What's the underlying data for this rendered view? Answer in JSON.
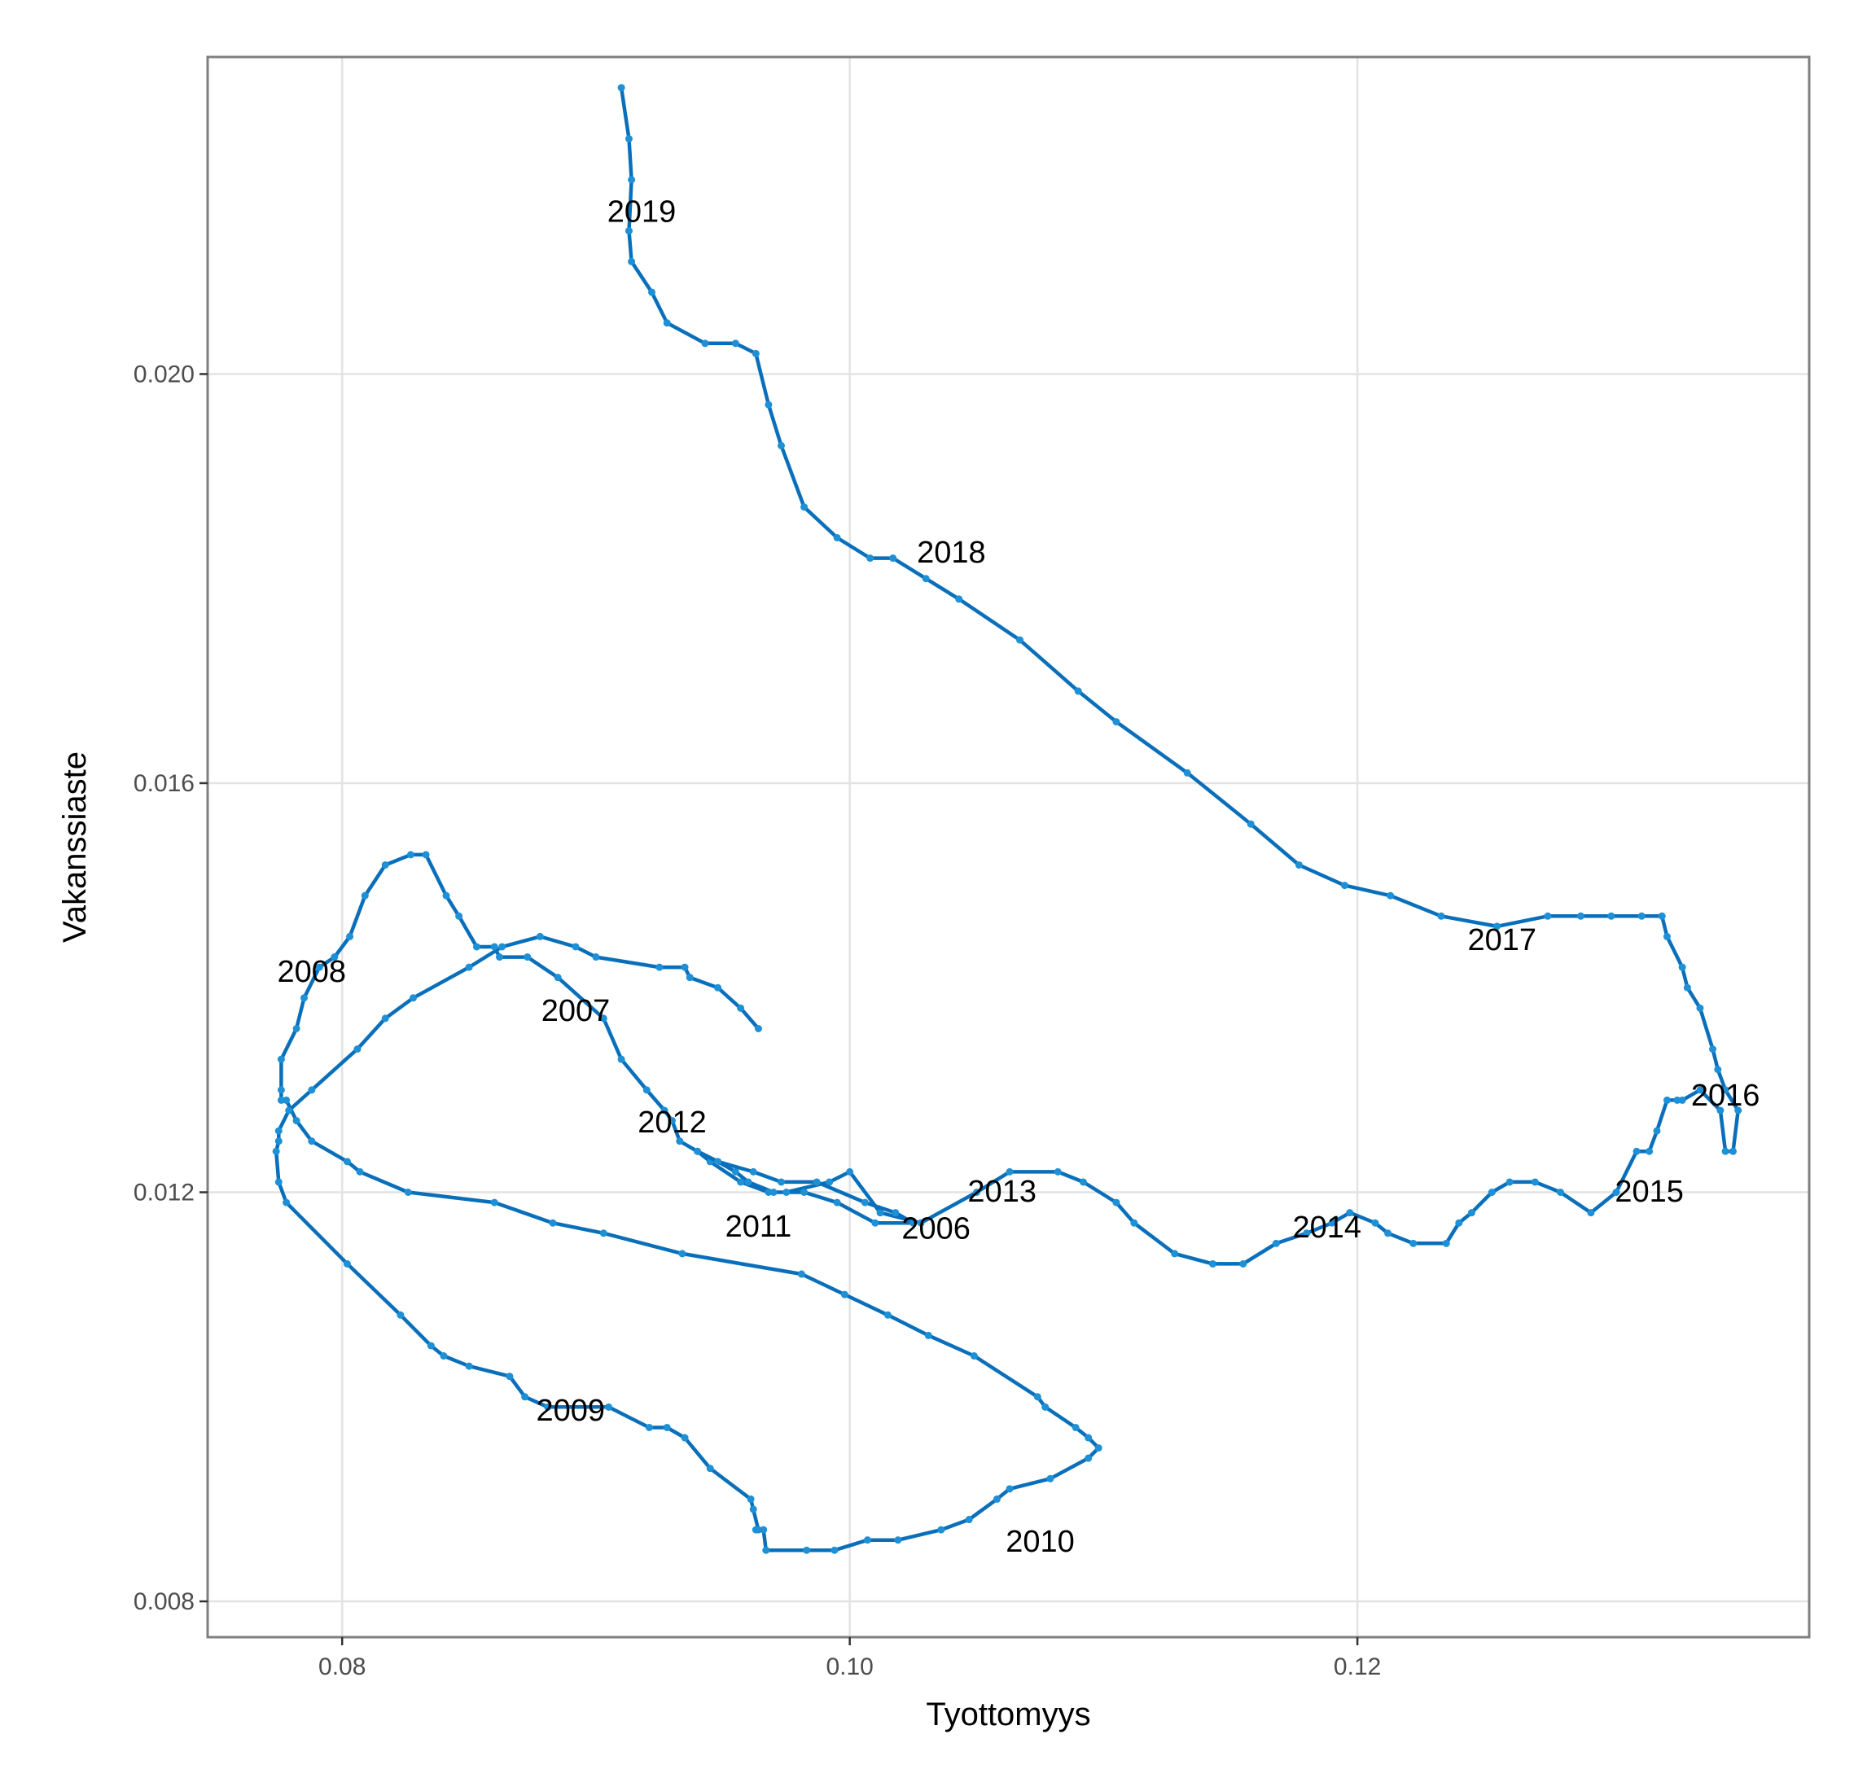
{
  "colors": {
    "line": "#0a6fba",
    "point": "#1e90d6",
    "grid": "#e3e3e3",
    "border": "#7f7f7f"
  },
  "chart_data": {
    "type": "line",
    "xlabel": "Tyottomyys",
    "ylabel": "Vakanssiaste",
    "xlim": [
      0.0747,
      0.1378
    ],
    "ylim": [
      0.00765,
      0.0231
    ],
    "x_ticks": [
      0.08,
      0.1,
      0.12
    ],
    "x_tick_labels": [
      "0.08",
      "0.10",
      "0.12"
    ],
    "y_ticks": [
      0.008,
      0.012,
      0.016,
      0.02
    ],
    "y_tick_labels": [
      "0.008",
      "0.012",
      "0.016",
      "0.020"
    ],
    "grid": true,
    "legend": "none",
    "series": [
      {
        "x": [
          0.1025,
          0.101,
          0.0995,
          0.0982,
          0.0968,
          0.0957,
          0.0945,
          0.094,
          0.0948,
          0.0955,
          0.096,
          0.097,
          0.0975,
          0.0992,
          0.1,
          0.1012,
          0.1028,
          0.105,
          0.1063,
          0.1082,
          0.1092,
          0.1105,
          0.1112,
          0.1128,
          0.1143,
          0.1155,
          0.1168,
          0.118,
          0.119,
          0.1197,
          0.1207,
          0.1212,
          0.1222,
          0.1235,
          0.124,
          0.1245,
          0.1253,
          0.126,
          0.127,
          0.128,
          0.1292,
          0.1302,
          0.131,
          0.1315,
          0.1318,
          0.1322,
          0.1326,
          0.1328,
          0.1335,
          0.1343,
          0.1345,
          0.1348,
          0.135,
          0.1345,
          0.1342,
          0.134,
          0.1335,
          0.133,
          0.1328,
          0.1322,
          0.132,
          0.1312,
          0.13,
          0.1288,
          0.1275,
          0.1255,
          0.1233,
          0.1213,
          0.1195,
          0.1177,
          0.1158,
          0.1133,
          0.1105,
          0.109,
          0.1067,
          0.1043,
          0.103,
          0.1017,
          0.1008,
          0.0995,
          0.0982,
          0.0973,
          0.0968,
          0.0963,
          0.0955,
          0.0943,
          0.0928,
          0.0922,
          0.0914,
          0.0913,
          0.0914,
          0.0913,
          0.091
        ],
        "y": [
          0.0117,
          0.0117,
          0.0119,
          0.012,
          0.012,
          0.0121,
          0.0123,
          0.0124,
          0.0123,
          0.0122,
          0.0121,
          0.012,
          0.012,
          0.0121,
          0.0122,
          0.0118,
          0.0117,
          0.012,
          0.0122,
          0.0122,
          0.0121,
          0.0119,
          0.0117,
          0.0114,
          0.0113,
          0.0113,
          0.0115,
          0.0116,
          0.0117,
          0.0118,
          0.0117,
          0.0116,
          0.0115,
          0.0115,
          0.0117,
          0.0118,
          0.012,
          0.0121,
          0.0121,
          0.012,
          0.0118,
          0.012,
          0.0124,
          0.0124,
          0.0126,
          0.0129,
          0.0129,
          0.0129,
          0.013,
          0.0128,
          0.0124,
          0.0124,
          0.0128,
          0.013,
          0.0132,
          0.0134,
          0.0138,
          0.014,
          0.0142,
          0.0145,
          0.0147,
          0.0147,
          0.0147,
          0.0147,
          0.0147,
          0.0146,
          0.0147,
          0.0149,
          0.015,
          0.0152,
          0.0156,
          0.0161,
          0.0166,
          0.0169,
          0.0174,
          0.0178,
          0.018,
          0.0182,
          0.0182,
          0.0184,
          0.0187,
          0.0193,
          0.0197,
          0.0202,
          0.0203,
          0.0203,
          0.0205,
          0.0208,
          0.0211,
          0.0214,
          0.0219,
          0.0223,
          0.0228
        ]
      },
      {
        "x": [
          0.1025,
          0.1018,
          0.1006,
          0.0987,
          0.0973,
          0.0962,
          0.0948,
          0.094,
          0.0933,
          0.093,
          0.0927,
          0.092,
          0.091,
          0.0903,
          0.0885,
          0.0873,
          0.0862,
          0.086,
          0.0853,
          0.0846,
          0.0841,
          0.0833,
          0.0827,
          0.0817,
          0.0809,
          0.0803,
          0.0797,
          0.0791,
          0.0785,
          0.0782,
          0.0776,
          0.0776,
          0.0776,
          0.0778,
          0.0782,
          0.0788,
          0.0802,
          0.0807,
          0.0826,
          0.086,
          0.0883,
          0.0903,
          0.0934,
          0.0981,
          0.0998,
          0.1015,
          0.1031,
          0.1049,
          0.1074,
          0.1077,
          0.1089,
          0.1094,
          0.1098,
          0.1094,
          0.1079,
          0.1063,
          0.1058,
          0.1047,
          0.1036,
          0.1019,
          0.1007,
          0.0994,
          0.0983,
          0.0967,
          0.0966,
          0.0963,
          0.0964,
          0.0962,
          0.0961,
          0.0945,
          0.0935,
          0.0928,
          0.0921,
          0.0905,
          0.0881,
          0.0872,
          0.0866,
          0.085,
          0.084,
          0.0835,
          0.0823,
          0.0802,
          0.0778,
          0.0775,
          0.0774,
          0.0775,
          0.0775,
          0.0779,
          0.0788,
          0.0806,
          0.0817,
          0.0828,
          0.085,
          0.0863,
          0.0878,
          0.0892,
          0.09,
          0.0925,
          0.0935,
          0.0937,
          0.0948,
          0.0957,
          0.0964
        ],
        "y": [
          0.0117,
          0.0118,
          0.0119,
          0.0121,
          0.0121,
          0.0122,
          0.0123,
          0.0124,
          0.0125,
          0.0127,
          0.0128,
          0.013,
          0.0133,
          0.0137,
          0.0141,
          0.0143,
          0.0143,
          0.0144,
          0.0144,
          0.0147,
          0.0149,
          0.0153,
          0.0153,
          0.0152,
          0.0149,
          0.0145,
          0.0143,
          0.0142,
          0.0139,
          0.0136,
          0.0133,
          0.013,
          0.0129,
          0.0129,
          0.0127,
          0.0125,
          0.0123,
          0.0122,
          0.012,
          0.0119,
          0.0117,
          0.0116,
          0.0114,
          0.0112,
          0.011,
          0.0108,
          0.0106,
          0.0104,
          0.01,
          0.0099,
          0.0097,
          0.0096,
          0.0095,
          0.0094,
          0.0092,
          0.0091,
          0.009,
          0.0088,
          0.0087,
          0.0086,
          0.0086,
          0.0085,
          0.0085,
          0.0085,
          0.0087,
          0.0087,
          0.0087,
          0.0089,
          0.009,
          0.0093,
          0.0096,
          0.0097,
          0.0097,
          0.0099,
          0.0099,
          0.01,
          0.0102,
          0.0103,
          0.0104,
          0.0105,
          0.0108,
          0.0113,
          0.0119,
          0.0121,
          0.0124,
          0.0125,
          0.0126,
          0.0128,
          0.013,
          0.0134,
          0.0137,
          0.0139,
          0.0142,
          0.0144,
          0.0145,
          0.0144,
          0.0143,
          0.0142,
          0.0142,
          0.0141,
          0.014,
          0.0138,
          0.0136
        ]
      }
    ],
    "annotations": [
      {
        "text": "2006",
        "x": 0.1034,
        "y": 0.01165
      },
      {
        "text": "2007",
        "x": 0.0892,
        "y": 0.01378
      },
      {
        "text": "2008",
        "x": 0.0788,
        "y": 0.01416
      },
      {
        "text": "2009",
        "x": 0.089,
        "y": 0.00987
      },
      {
        "text": "2010",
        "x": 0.1075,
        "y": 0.00859
      },
      {
        "text": "2011",
        "x": 0.0964,
        "y": 0.01167
      },
      {
        "text": "2012",
        "x": 0.093,
        "y": 0.01269
      },
      {
        "text": "2013",
        "x": 0.106,
        "y": 0.01201
      },
      {
        "text": "2014",
        "x": 0.1188,
        "y": 0.01166
      },
      {
        "text": "2015",
        "x": 0.1315,
        "y": 0.01201
      },
      {
        "text": "2016",
        "x": 0.1345,
        "y": 0.01295
      },
      {
        "text": "2017",
        "x": 0.1257,
        "y": 0.01447
      },
      {
        "text": "2018",
        "x": 0.104,
        "y": 0.01826
      },
      {
        "text": "2019",
        "x": 0.0918,
        "y": 0.02159
      }
    ]
  }
}
